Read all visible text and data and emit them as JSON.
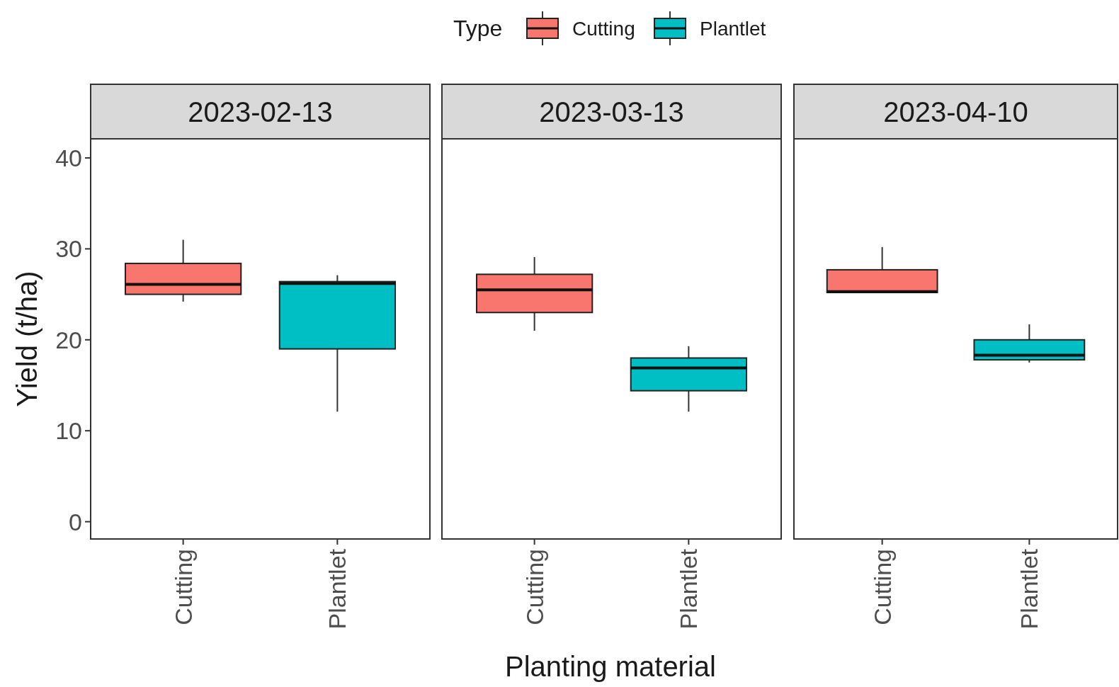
{
  "chart_data": [
    {
      "type": "box",
      "title": "2023-02-13",
      "ylabel": "Yield (t/ha)",
      "categories": [
        "Cutting",
        "Plantlet"
      ],
      "ylim": [
        -1.9,
        42.1
      ],
      "yticks": [
        0,
        10,
        20,
        30,
        40
      ],
      "grid": false,
      "legend": false,
      "series": [
        {
          "color": "#f8766d",
          "boxes": [
            {
              "low": 24.2,
              "q1": 25.0,
              "median": 26.1,
              "q3": 28.4,
              "high": 31.0
            },
            null
          ]
        },
        {
          "color": "#00bfc4",
          "boxes": [
            null,
            {
              "low": 12.1,
              "q1": 19.0,
              "median": 26.2,
              "q3": 26.4,
              "high": 27.1
            }
          ]
        }
      ]
    },
    {
      "type": "box",
      "title": "2023-03-13",
      "xlabel": "Planting material",
      "legend_title": "Type",
      "legend": "top",
      "categories": [
        "Cutting",
        "Plantlet"
      ],
      "ylim": [
        -1.9,
        42.1
      ],
      "yticks": [
        0,
        10,
        20,
        30,
        40
      ],
      "grid": false,
      "tick_labels": "x",
      "series": [
        {
          "name": "Cutting",
          "color": "#f8766d",
          "boxes": [
            {
              "low": 21.0,
              "q1": 23.0,
              "median": 25.5,
              "q3": 27.2,
              "high": 29.1
            },
            null
          ]
        },
        {
          "name": "Plantlet",
          "color": "#00bfc4",
          "boxes": [
            null,
            {
              "low": 12.1,
              "q1": 14.4,
              "median": 16.9,
              "q3": 18.0,
              "high": 19.3
            }
          ]
        }
      ]
    },
    {
      "type": "box",
      "title": "2023-04-10",
      "categories": [
        "Cutting",
        "Plantlet"
      ],
      "ylim": [
        -1.9,
        42.1
      ],
      "yticks": [
        0,
        10,
        20,
        30,
        40
      ],
      "grid": false,
      "tick_labels": "x",
      "legend": false,
      "series": [
        {
          "color": "#f8766d",
          "boxes": [
            {
              "low": 25.2,
              "q1": 25.2,
              "median": 25.3,
              "q3": 27.7,
              "high": 30.2
            },
            null
          ]
        },
        {
          "color": "#00bfc4",
          "boxes": [
            null,
            {
              "low": 17.5,
              "q1": 17.8,
              "median": 18.3,
              "q3": 20.0,
              "high": 21.7
            }
          ]
        }
      ]
    }
  ]
}
